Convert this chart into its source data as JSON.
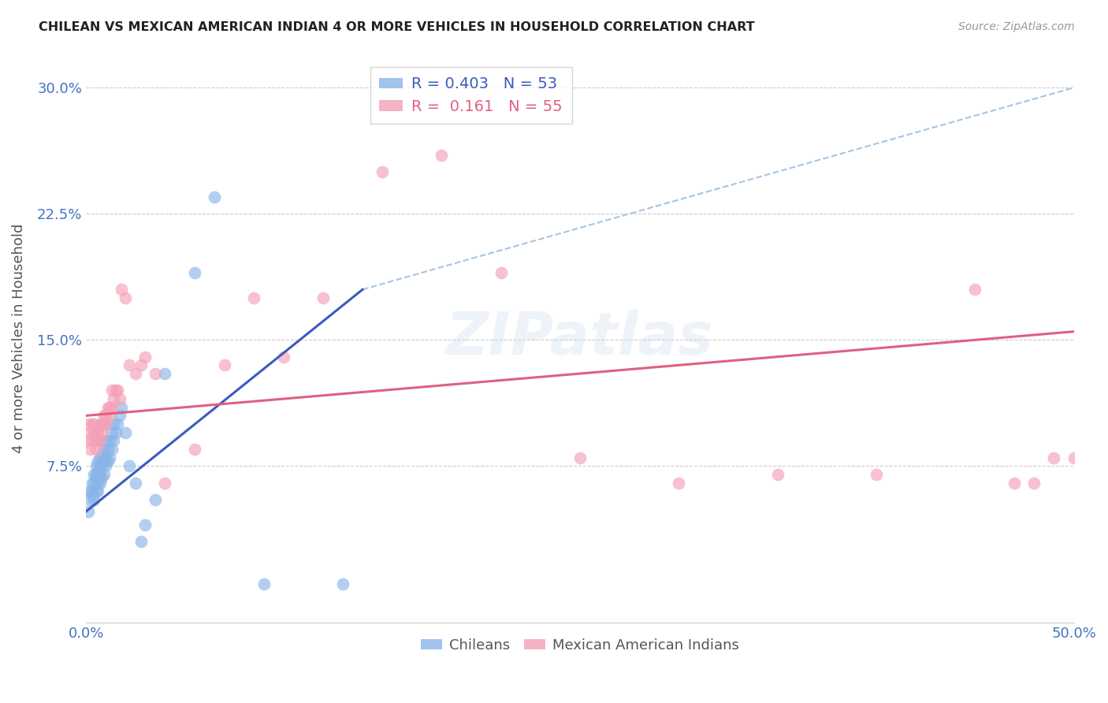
{
  "title": "CHILEAN VS MEXICAN AMERICAN INDIAN 4 OR MORE VEHICLES IN HOUSEHOLD CORRELATION CHART",
  "source": "Source: ZipAtlas.com",
  "ylabel": "4 or more Vehicles in Household",
  "xlim": [
    0.0,
    0.5
  ],
  "ylim": [
    -0.018,
    0.32
  ],
  "yticks": [
    0.075,
    0.15,
    0.225,
    0.3
  ],
  "ytick_labels": [
    "7.5%",
    "15.0%",
    "22.5%",
    "30.0%"
  ],
  "xticks": [
    0.0,
    0.1,
    0.2,
    0.3,
    0.4,
    0.5
  ],
  "xtick_labels": [
    "0.0%",
    "",
    "",
    "",
    "",
    "50.0%"
  ],
  "chilean_color": "#8ab4e8",
  "mexican_color": "#f4a0b8",
  "trend_chilean_color": "#3a5bbf",
  "trend_mexican_color": "#e06080",
  "dashed_line_color": "#a8c4e0",
  "background_color": "#ffffff",
  "grid_color": "#cccccc",
  "title_color": "#222222",
  "tick_color": "#4472c4",
  "watermark": "ZIPatlas",
  "chilean_x": [
    0.001,
    0.002,
    0.002,
    0.003,
    0.003,
    0.003,
    0.004,
    0.004,
    0.004,
    0.005,
    0.005,
    0.005,
    0.005,
    0.006,
    0.006,
    0.006,
    0.006,
    0.007,
    0.007,
    0.007,
    0.007,
    0.008,
    0.008,
    0.008,
    0.009,
    0.009,
    0.009,
    0.01,
    0.01,
    0.01,
    0.011,
    0.011,
    0.012,
    0.012,
    0.013,
    0.013,
    0.014,
    0.014,
    0.015,
    0.016,
    0.017,
    0.018,
    0.02,
    0.022,
    0.025,
    0.028,
    0.03,
    0.035,
    0.04,
    0.055,
    0.065,
    0.09,
    0.13
  ],
  "chilean_y": [
    0.048,
    0.055,
    0.06,
    0.058,
    0.06,
    0.065,
    0.055,
    0.065,
    0.07,
    0.06,
    0.068,
    0.07,
    0.075,
    0.06,
    0.065,
    0.072,
    0.078,
    0.065,
    0.07,
    0.075,
    0.08,
    0.068,
    0.075,
    0.082,
    0.07,
    0.078,
    0.085,
    0.075,
    0.08,
    0.09,
    0.078,
    0.085,
    0.08,
    0.09,
    0.085,
    0.095,
    0.09,
    0.1,
    0.095,
    0.1,
    0.105,
    0.11,
    0.095,
    0.075,
    0.065,
    0.03,
    0.04,
    0.055,
    0.13,
    0.19,
    0.235,
    0.005,
    0.005
  ],
  "mexican_x": [
    0.001,
    0.001,
    0.002,
    0.002,
    0.003,
    0.003,
    0.004,
    0.004,
    0.005,
    0.005,
    0.005,
    0.006,
    0.006,
    0.007,
    0.007,
    0.008,
    0.008,
    0.009,
    0.009,
    0.01,
    0.01,
    0.011,
    0.012,
    0.012,
    0.013,
    0.013,
    0.014,
    0.015,
    0.016,
    0.017,
    0.018,
    0.02,
    0.022,
    0.025,
    0.028,
    0.03,
    0.035,
    0.04,
    0.055,
    0.07,
    0.085,
    0.1,
    0.12,
    0.15,
    0.18,
    0.21,
    0.25,
    0.3,
    0.35,
    0.4,
    0.45,
    0.47,
    0.48,
    0.49,
    0.5
  ],
  "mexican_y": [
    0.09,
    0.1,
    0.085,
    0.095,
    0.09,
    0.1,
    0.095,
    0.1,
    0.085,
    0.09,
    0.095,
    0.09,
    0.095,
    0.09,
    0.1,
    0.095,
    0.1,
    0.1,
    0.105,
    0.1,
    0.105,
    0.11,
    0.105,
    0.11,
    0.12,
    0.11,
    0.115,
    0.12,
    0.12,
    0.115,
    0.18,
    0.175,
    0.135,
    0.13,
    0.135,
    0.14,
    0.13,
    0.065,
    0.085,
    0.135,
    0.175,
    0.14,
    0.175,
    0.25,
    0.26,
    0.19,
    0.08,
    0.065,
    0.07,
    0.07,
    0.18,
    0.065,
    0.065,
    0.08,
    0.08
  ],
  "trend_ch_x0": 0.0,
  "trend_ch_y0": 0.048,
  "trend_ch_x1": 0.14,
  "trend_ch_y1": 0.18,
  "trend_ch_dash_x0": 0.14,
  "trend_ch_dash_y0": 0.18,
  "trend_ch_dash_x1": 0.5,
  "trend_ch_dash_y1": 0.3,
  "trend_mx_x0": 0.0,
  "trend_mx_y0": 0.105,
  "trend_mx_x1": 0.5,
  "trend_mx_y1": 0.155
}
